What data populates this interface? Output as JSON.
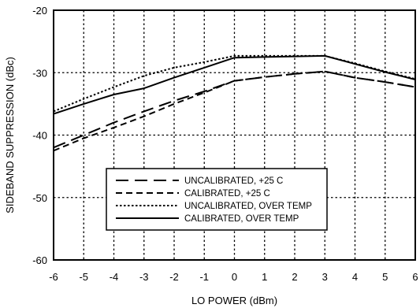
{
  "chart_data": {
    "type": "line",
    "xlabel": "LO POWER (dBm)",
    "ylabel": "SIDEBAND SUPPRESSION (dBc)",
    "xlim": [
      -6,
      6
    ],
    "ylim": [
      -60,
      -20
    ],
    "xticks": [
      "-6",
      "-5",
      "-4",
      "-3",
      "-2",
      "-1",
      "0",
      "1",
      "2",
      "3",
      "4",
      "5",
      "6"
    ],
    "yticks": [
      "-20",
      "-30",
      "-40",
      "-50",
      "-60"
    ],
    "grid": true,
    "legend_position": "lower-center",
    "series": [
      {
        "name": "UNCALIBRATED, +25 C",
        "style": "long-dash",
        "x": [
          -6,
          -5,
          -4,
          -3,
          -2,
          -1,
          0,
          1,
          2,
          3,
          4,
          5,
          6
        ],
        "y": [
          -42,
          -40,
          -38,
          -36.2,
          -34.5,
          -33,
          -31.3,
          -30.7,
          -30.2,
          -29.8,
          -30.8,
          -31.5,
          -32.3
        ]
      },
      {
        "name": "CALIBRATED,  +25 C",
        "style": "short-dash",
        "x": [
          -6,
          -5,
          -4,
          -3,
          -2,
          -1,
          0,
          1,
          2,
          3,
          4,
          5,
          6
        ],
        "y": [
          -42.5,
          -40.5,
          -38.8,
          -37,
          -35,
          -33.2,
          -31.3,
          -30.7,
          -30.2,
          -29.8,
          -30.8,
          -31.5,
          -32.3
        ]
      },
      {
        "name": "UNCALIBRATED, OVER TEMP",
        "style": "dotted",
        "x": [
          -6,
          -5,
          -4,
          -3,
          -2,
          -1,
          0,
          1,
          2,
          3,
          4,
          5,
          6
        ],
        "y": [
          -36.2,
          -34.2,
          -32.3,
          -30.5,
          -29.2,
          -28.3,
          -27.3,
          -27.3,
          -27.3,
          -27.3,
          -28.5,
          -29.8,
          -31
        ]
      },
      {
        "name": "CALIBRATED, OVER TEMP",
        "style": "solid",
        "x": [
          -6,
          -5,
          -4,
          -3,
          -2,
          -1,
          0,
          1,
          2,
          3,
          4,
          5,
          6
        ],
        "y": [
          -36.6,
          -35,
          -33.5,
          -32.5,
          -30.8,
          -29.2,
          -27.6,
          -27.5,
          -27.4,
          -27.3,
          -28.6,
          -29.9,
          -31.1
        ]
      }
    ]
  }
}
